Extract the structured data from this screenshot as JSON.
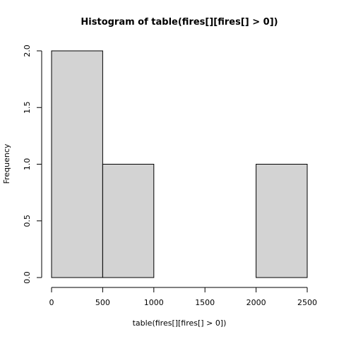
{
  "chart_data": {
    "type": "bar",
    "title": "Histogram of table(fires[][fires[] > 0])",
    "xlabel": "table(fires[][fires[] > 0])",
    "ylabel": "Frequency",
    "bins": [
      {
        "start": 0,
        "end": 500,
        "value": 2
      },
      {
        "start": 500,
        "end": 1000,
        "value": 1
      },
      {
        "start": 1000,
        "end": 1500,
        "value": 0
      },
      {
        "start": 1500,
        "end": 2000,
        "value": 0
      },
      {
        "start": 2000,
        "end": 2500,
        "value": 1
      }
    ],
    "xlim": [
      0,
      2500
    ],
    "ylim": [
      0,
      2
    ],
    "x_ticks": [
      "0",
      "500",
      "1000",
      "1500",
      "2000",
      "2500"
    ],
    "y_ticks": [
      "0.0",
      "0.5",
      "1.0",
      "1.5",
      "2.0"
    ],
    "bar_fill": "#d3d3d3",
    "bar_stroke": "#000000",
    "grid": false
  }
}
